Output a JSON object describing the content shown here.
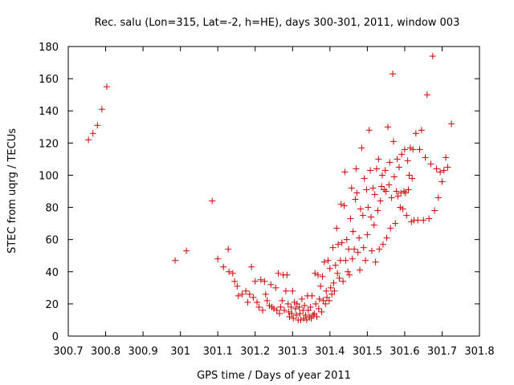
{
  "chart_data": {
    "type": "scatter",
    "title": "Rec. salu (Lon=315, Lat=-2, h=HE), days 300-301, 2011, window 003",
    "xlabel": "GPS time / Days of year 2011",
    "ylabel": "STEC from uqrg / TECUs",
    "xlim": [
      300.7,
      301.8
    ],
    "ylim": [
      0,
      180
    ],
    "xticks": [
      300.7,
      300.8,
      300.9,
      301,
      301.1,
      301.2,
      301.3,
      301.4,
      301.5,
      301.6,
      301.7,
      301.8
    ],
    "xtick_labels": [
      "300.7",
      "300.8",
      "300.9",
      "301",
      "301.1",
      "301.2",
      "301.3",
      "301.4",
      "301.5",
      "301.6",
      "301.7",
      "301.8"
    ],
    "yticks": [
      0,
      20,
      40,
      60,
      80,
      100,
      120,
      140,
      160,
      180
    ],
    "ytick_labels": [
      "0",
      "20",
      "40",
      "60",
      "80",
      "100",
      "120",
      "140",
      "160",
      "180"
    ],
    "grid": false,
    "marker": "+",
    "marker_color": "#cc0000",
    "points": [
      [
        300.754,
        122
      ],
      [
        300.766,
        126
      ],
      [
        300.778,
        131
      ],
      [
        300.79,
        141
      ],
      [
        300.803,
        155
      ],
      [
        300.986,
        47
      ],
      [
        301.016,
        53
      ],
      [
        301.085,
        84
      ],
      [
        301.1,
        48
      ],
      [
        301.115,
        43
      ],
      [
        301.128,
        54
      ],
      [
        301.13,
        40
      ],
      [
        301.14,
        39
      ],
      [
        301.145,
        34
      ],
      [
        301.152,
        31
      ],
      [
        301.155,
        25
      ],
      [
        301.165,
        26
      ],
      [
        301.175,
        28
      ],
      [
        301.18,
        21
      ],
      [
        301.185,
        26
      ],
      [
        301.19,
        43
      ],
      [
        301.195,
        24
      ],
      [
        301.2,
        34
      ],
      [
        301.205,
        21
      ],
      [
        301.21,
        18
      ],
      [
        301.215,
        35
      ],
      [
        301.22,
        16
      ],
      [
        301.225,
        34
      ],
      [
        301.228,
        26
      ],
      [
        301.232,
        22
      ],
      [
        301.238,
        19
      ],
      [
        301.242,
        32
      ],
      [
        301.245,
        18
      ],
      [
        301.25,
        17
      ],
      [
        301.255,
        30
      ],
      [
        301.258,
        16
      ],
      [
        301.262,
        39
      ],
      [
        301.265,
        14
      ],
      [
        301.268,
        18
      ],
      [
        301.272,
        22
      ],
      [
        301.275,
        38
      ],
      [
        301.278,
        16
      ],
      [
        301.282,
        28
      ],
      [
        301.285,
        38
      ],
      [
        301.288,
        20
      ],
      [
        301.29,
        15
      ],
      [
        301.292,
        12
      ],
      [
        301.296,
        18
      ],
      [
        301.298,
        14
      ],
      [
        301.3,
        28
      ],
      [
        301.302,
        11
      ],
      [
        301.305,
        21
      ],
      [
        301.308,
        17
      ],
      [
        301.31,
        13
      ],
      [
        301.312,
        20
      ],
      [
        301.315,
        10
      ],
      [
        301.318,
        18
      ],
      [
        301.32,
        14
      ],
      [
        301.322,
        10
      ],
      [
        301.325,
        23
      ],
      [
        301.328,
        16
      ],
      [
        301.33,
        11
      ],
      [
        301.332,
        19
      ],
      [
        301.335,
        13
      ],
      [
        301.338,
        10
      ],
      [
        301.34,
        25
      ],
      [
        301.342,
        16
      ],
      [
        301.345,
        12
      ],
      [
        301.348,
        18
      ],
      [
        301.35,
        11
      ],
      [
        301.352,
        25
      ],
      [
        301.355,
        13
      ],
      [
        301.358,
        14
      ],
      [
        301.36,
        39
      ],
      [
        301.362,
        20
      ],
      [
        301.365,
        12
      ],
      [
        301.368,
        38
      ],
      [
        301.37,
        17
      ],
      [
        301.372,
        23
      ],
      [
        301.375,
        31
      ],
      [
        301.378,
        15
      ],
      [
        301.38,
        37
      ],
      [
        301.382,
        22
      ],
      [
        301.385,
        46
      ],
      [
        301.388,
        20
      ],
      [
        301.39,
        28
      ],
      [
        301.392,
        24
      ],
      [
        301.395,
        47
      ],
      [
        301.398,
        22
      ],
      [
        301.4,
        42
      ],
      [
        301.402,
        30
      ],
      [
        301.405,
        26
      ],
      [
        301.408,
        55
      ],
      [
        301.41,
        33
      ],
      [
        301.412,
        28
      ],
      [
        301.415,
        44
      ],
      [
        301.418,
        67
      ],
      [
        301.42,
        39
      ],
      [
        301.422,
        57
      ],
      [
        301.425,
        36
      ],
      [
        301.428,
        47
      ],
      [
        301.43,
        82
      ],
      [
        301.432,
        58
      ],
      [
        301.435,
        34
      ],
      [
        301.438,
        81
      ],
      [
        301.44,
        102
      ],
      [
        301.442,
        47
      ],
      [
        301.445,
        60
      ],
      [
        301.448,
        40
      ],
      [
        301.45,
        54
      ],
      [
        301.452,
        38
      ],
      [
        301.455,
        73
      ],
      [
        301.458,
        92
      ],
      [
        301.46,
        48
      ],
      [
        301.462,
        65
      ],
      [
        301.465,
        54
      ],
      [
        301.468,
        85
      ],
      [
        301.47,
        104
      ],
      [
        301.472,
        89
      ],
      [
        301.475,
        52
      ],
      [
        301.478,
        61
      ],
      [
        301.48,
        41
      ],
      [
        301.482,
        79
      ],
      [
        301.485,
        117
      ],
      [
        301.488,
        75
      ],
      [
        301.49,
        55
      ],
      [
        301.492,
        98
      ],
      [
        301.495,
        47
      ],
      [
        301.498,
        91
      ],
      [
        301.5,
        63
      ],
      [
        301.502,
        80
      ],
      [
        301.505,
        128
      ],
      [
        301.508,
        103
      ],
      [
        301.51,
        74
      ],
      [
        301.512,
        53
      ],
      [
        301.515,
        92
      ],
      [
        301.518,
        69
      ],
      [
        301.52,
        88
      ],
      [
        301.522,
        46
      ],
      [
        301.525,
        104
      ],
      [
        301.528,
        78
      ],
      [
        301.53,
        110
      ],
      [
        301.532,
        54
      ],
      [
        301.535,
        84
      ],
      [
        301.538,
        93
      ],
      [
        301.54,
        100
      ],
      [
        301.542,
        57
      ],
      [
        301.545,
        91
      ],
      [
        301.548,
        103
      ],
      [
        301.55,
        90
      ],
      [
        301.552,
        61
      ],
      [
        301.555,
        130
      ],
      [
        301.558,
        94
      ],
      [
        301.56,
        108
      ],
      [
        301.562,
        67
      ],
      [
        301.565,
        86
      ],
      [
        301.568,
        163
      ],
      [
        301.57,
        121
      ],
      [
        301.572,
        99
      ],
      [
        301.575,
        70
      ],
      [
        301.578,
        90
      ],
      [
        301.58,
        110
      ],
      [
        301.582,
        87
      ],
      [
        301.585,
        105
      ],
      [
        301.588,
        80
      ],
      [
        301.59,
        89
      ],
      [
        301.592,
        113
      ],
      [
        301.595,
        79
      ],
      [
        301.598,
        90
      ],
      [
        301.6,
        116
      ],
      [
        301.602,
        89
      ],
      [
        301.605,
        75
      ],
      [
        301.608,
        109
      ],
      [
        301.61,
        91
      ],
      [
        301.612,
        100
      ],
      [
        301.615,
        117
      ],
      [
        301.618,
        71
      ],
      [
        301.62,
        98
      ],
      [
        301.622,
        116
      ],
      [
        301.625,
        72
      ],
      [
        301.63,
        126
      ],
      [
        301.635,
        72
      ],
      [
        301.64,
        116
      ],
      [
        301.645,
        128
      ],
      [
        301.65,
        72
      ],
      [
        301.655,
        111
      ],
      [
        301.66,
        150
      ],
      [
        301.665,
        73
      ],
      [
        301.67,
        107
      ],
      [
        301.675,
        174
      ],
      [
        301.68,
        78
      ],
      [
        301.685,
        104
      ],
      [
        301.69,
        86
      ],
      [
        301.695,
        102
      ],
      [
        301.7,
        96
      ],
      [
        301.705,
        103
      ],
      [
        301.71,
        111
      ],
      [
        301.715,
        105
      ],
      [
        301.725,
        132
      ]
    ]
  }
}
